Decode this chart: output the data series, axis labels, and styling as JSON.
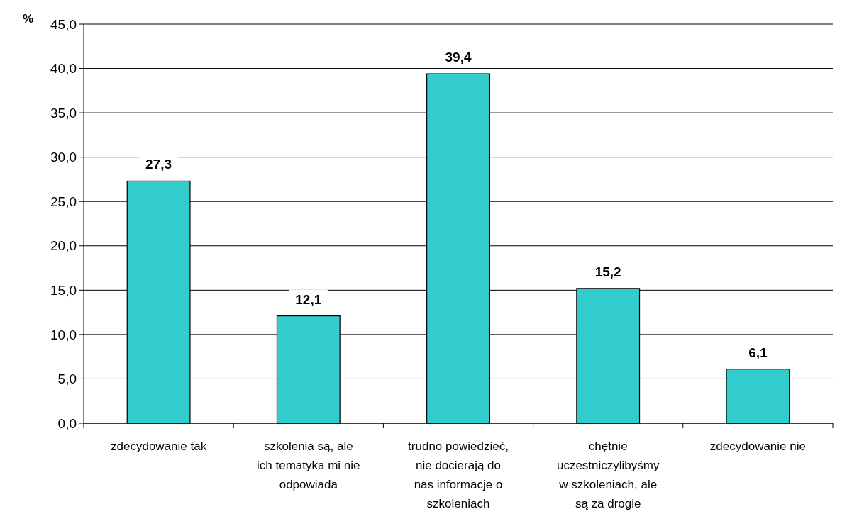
{
  "chart_data": {
    "type": "bar",
    "ylabel": "%",
    "categories": [
      "zdecydowanie tak",
      "szkolenia są, ale ich tematyka mi nie odpowiada",
      "trudno powiedzieć, nie docierają do nas informacje o szkoleniach",
      "chętnie uczestniczylibyśmy w szkoleniach, ale są za drogie",
      "zdecydowanie nie"
    ],
    "values": [
      27.3,
      12.1,
      39.4,
      15.2,
      6.1
    ],
    "value_labels": [
      "27,3",
      "12,1",
      "39,4",
      "15,2",
      "6,1"
    ],
    "color": "#33cccc",
    "ylim": [
      0,
      45
    ],
    "yticks": [
      {
        "value": 0,
        "label": "0,0"
      },
      {
        "value": 5,
        "label": "5,0"
      },
      {
        "value": 10,
        "label": "10,0"
      },
      {
        "value": 15,
        "label": "15,0"
      },
      {
        "value": 20,
        "label": "20,0"
      },
      {
        "value": 25,
        "label": "25,0"
      },
      {
        "value": 30,
        "label": "30,0"
      },
      {
        "value": 35,
        "label": "35,0"
      },
      {
        "value": 40,
        "label": "40,0"
      },
      {
        "value": 45,
        "label": "45,0"
      }
    ],
    "grid": "y"
  }
}
